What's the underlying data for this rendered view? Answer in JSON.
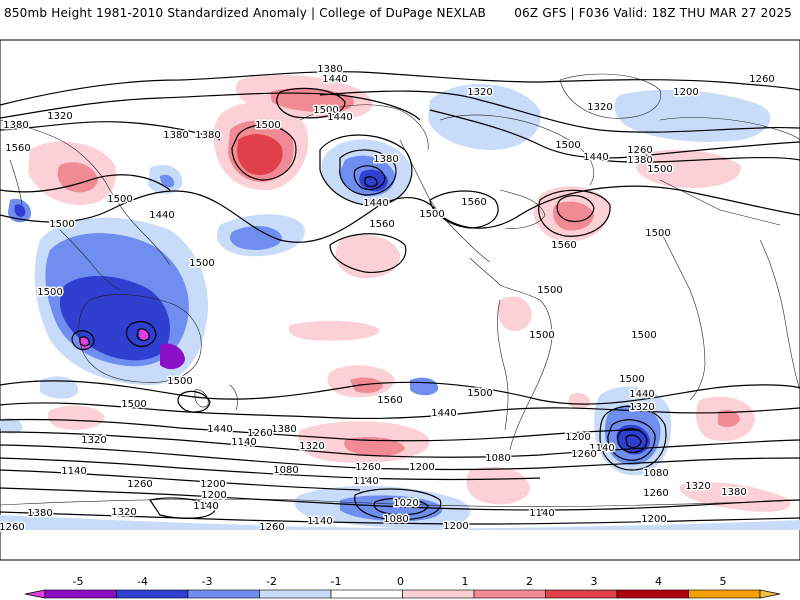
{
  "header": {
    "title": "850mb Height 1981-2010 Standardized Anomaly | College of DuPage NEXLAB",
    "run_info": "06Z GFS | F036 Valid: 18Z THU MAR 27 2025"
  },
  "map": {
    "field": "850mb geopotential height with standardized anomaly shading",
    "contour_labels": [
      "1380",
      "1440",
      "1320",
      "1260",
      "1200",
      "1140",
      "1080",
      "1500",
      "1560",
      "1020"
    ],
    "anomaly_colors": {
      "neg5": "#e040e0",
      "neg4": "#8a10c8",
      "neg3": "#2f3fd0",
      "neg2": "#6f8ef0",
      "neg1": "#c8dcfa",
      "zero": "#ffffff",
      "pos1": "#fbd0d6",
      "pos2": "#f08a94",
      "pos3": "#e0404a",
      "pos4": "#b00010",
      "pos5": "#f5a000"
    }
  },
  "colorbar": {
    "ticks": [
      "-5",
      "-4",
      "-3",
      "-2",
      "-1",
      "0",
      "1",
      "2",
      "3",
      "4",
      "5"
    ],
    "segments": [
      "#e040e0",
      "#8a10c8",
      "#2f3fd0",
      "#6f8ef0",
      "#c8dcfa",
      "#ffffff",
      "#fbd0d6",
      "#f08a94",
      "#e0404a",
      "#b00010",
      "#f5a000",
      "#f5c040"
    ]
  }
}
